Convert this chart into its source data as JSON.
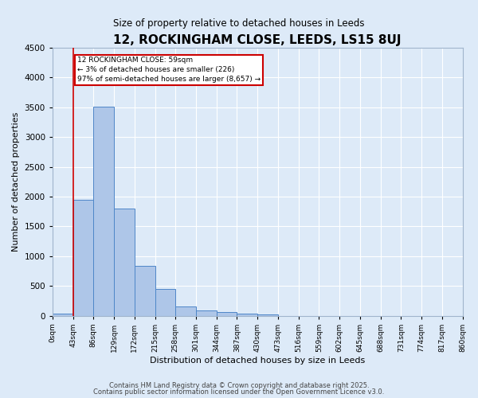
{
  "title": "12, ROCKINGHAM CLOSE, LEEDS, LS15 8UJ",
  "subtitle": "Size of property relative to detached houses in Leeds",
  "xlabel": "Distribution of detached houses by size in Leeds",
  "ylabel": "Number of detached properties",
  "bar_values": [
    40,
    1950,
    3510,
    1800,
    840,
    450,
    155,
    90,
    55,
    30,
    20,
    0,
    0,
    0,
    0,
    0,
    0,
    0,
    0,
    0
  ],
  "bar_labels": [
    "0sqm",
    "43sqm",
    "86sqm",
    "129sqm",
    "172sqm",
    "215sqm",
    "258sqm",
    "301sqm",
    "344sqm",
    "387sqm",
    "430sqm",
    "473sqm",
    "516sqm",
    "559sqm",
    "602sqm",
    "645sqm",
    "688sqm",
    "731sqm",
    "774sqm",
    "817sqm",
    "860sqm"
  ],
  "bar_color": "#aec6e8",
  "bar_edge_color": "#4e86c8",
  "bg_color": "#ddeaf8",
  "grid_color": "#ffffff",
  "red_line_x": 1.0,
  "annotation_text": "12 ROCKINGHAM CLOSE: 59sqm\n← 3% of detached houses are smaller (226)\n97% of semi-detached houses are larger (8,657) →",
  "annotation_box_color": "#ffffff",
  "annotation_box_edge": "#cc0000",
  "ylim": [
    0,
    4500
  ],
  "yticks": [
    0,
    500,
    1000,
    1500,
    2000,
    2500,
    3000,
    3500,
    4000,
    4500
  ],
  "footnote1": "Contains HM Land Registry data © Crown copyright and database right 2025.",
  "footnote2": "Contains public sector information licensed under the Open Government Licence v3.0.",
  "fig_bg": "#ddeaf8"
}
